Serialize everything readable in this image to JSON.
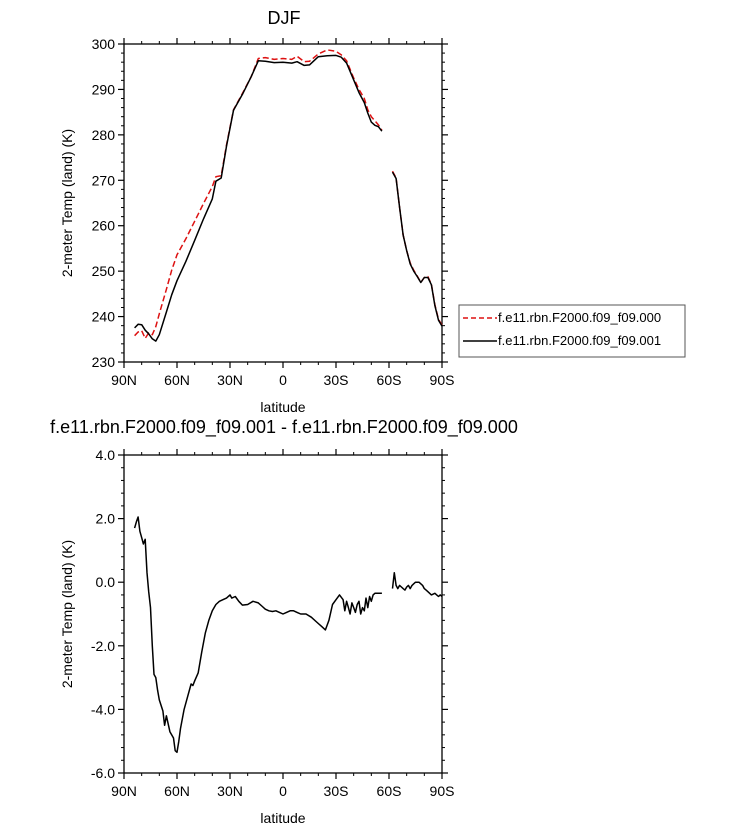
{
  "chart_data": [
    {
      "type": "line",
      "title": "DJF",
      "xlabel": "latitude",
      "ylabel": "2-meter Temp (land) (K)",
      "xlim": [
        90,
        -90
      ],
      "ylim": [
        230,
        300
      ],
      "x_tick_values": [
        90,
        60,
        30,
        0,
        -30,
        -60,
        -90
      ],
      "x_tick_labels": [
        "90N",
        "60N",
        "30N",
        "0",
        "30S",
        "60S",
        "90S"
      ],
      "y_tick_values": [
        230,
        240,
        250,
        260,
        270,
        280,
        290,
        300
      ],
      "y_tick_labels": [
        "230",
        "240",
        "250",
        "260",
        "270",
        "280",
        "290",
        "300"
      ],
      "legend_position": "right",
      "series": [
        {
          "name": "f.e11.rbn.F2000.f09_f09.000",
          "color": "#dd1111",
          "dash": "dashed",
          "segments": [
            [
              [
                84,
                235.8
              ],
              [
                82,
                236.6
              ],
              [
                80,
                236.9
              ],
              [
                78,
                235.2
              ],
              [
                76,
                236.4
              ],
              [
                74,
                236.0
              ],
              [
                72,
                237.8
              ],
              [
                70,
                240.6
              ],
              [
                66,
                246.0
              ],
              [
                63,
                250.2
              ],
              [
                60,
                253.6
              ],
              [
                55,
                257.1
              ],
              [
                50,
                261.0
              ],
              [
                45,
                264.9
              ],
              [
                40,
                268.6
              ],
              [
                38,
                270.8
              ],
              [
                35,
                271.0
              ],
              [
                32,
                277.8
              ],
              [
                28,
                285.5
              ],
              [
                23,
                289.1
              ],
              [
                18,
                292.8
              ],
              [
                14,
                296.8
              ],
              [
                10,
                297.0
              ],
              [
                5,
                296.6
              ],
              [
                0,
                296.8
              ],
              [
                -5,
                296.6
              ],
              [
                -8,
                297.3
              ],
              [
                -12,
                296.1
              ],
              [
                -15,
                296.2
              ],
              [
                -20,
                297.8
              ],
              [
                -25,
                298.7
              ],
              [
                -30,
                298.4
              ],
              [
                -33,
                297.6
              ],
              [
                -36,
                296.3
              ],
              [
                -40,
                292.5
              ],
              [
                -43,
                290.0
              ],
              [
                -46,
                288.0
              ],
              [
                -48,
                285.5
              ],
              [
                -50,
                284.0
              ],
              [
                -52,
                283.1
              ],
              [
                -54,
                282.2
              ],
              [
                -56,
                281.0
              ]
            ],
            [
              [
                -62,
                272.0
              ],
              [
                -64,
                270.5
              ],
              [
                -66,
                264.0
              ],
              [
                -68,
                258.0
              ],
              [
                -70,
                254.5
              ],
              [
                -72,
                251.8
              ],
              [
                -74,
                250.2
              ],
              [
                -76,
                248.9
              ],
              [
                -78,
                247.5
              ],
              [
                -80,
                248.6
              ],
              [
                -82,
                248.8
              ],
              [
                -84,
                247.1
              ],
              [
                -86,
                242.6
              ],
              [
                -88,
                239.4
              ],
              [
                -90,
                238.1
              ]
            ]
          ]
        },
        {
          "name": "f.e11.rbn.F2000.f09_f09.001",
          "color": "#000000",
          "dash": "solid",
          "segments": [
            [
              [
                84,
                237.5
              ],
              [
                82,
                238.3
              ],
              [
                80,
                238.2
              ],
              [
                78,
                237.0
              ],
              [
                76,
                236.2
              ],
              [
                74,
                235.1
              ],
              [
                72,
                234.6
              ],
              [
                70,
                236.0
              ],
              [
                66,
                241.0
              ],
              [
                63,
                244.8
              ],
              [
                60,
                247.9
              ],
              [
                55,
                252.1
              ],
              [
                50,
                256.8
              ],
              [
                45,
                261.5
              ],
              [
                40,
                265.9
              ],
              [
                38,
                269.8
              ],
              [
                35,
                270.5
              ],
              [
                32,
                277.5
              ],
              [
                28,
                285.4
              ],
              [
                23,
                288.9
              ],
              [
                18,
                292.8
              ],
              [
                14,
                296.3
              ],
              [
                10,
                296.2
              ],
              [
                5,
                295.9
              ],
              [
                0,
                296.0
              ],
              [
                -5,
                295.8
              ],
              [
                -8,
                296.1
              ],
              [
                -12,
                295.3
              ],
              [
                -15,
                295.4
              ],
              [
                -20,
                297.2
              ],
              [
                -25,
                297.4
              ],
              [
                -30,
                297.5
              ],
              [
                -33,
                297.1
              ],
              [
                -36,
                295.8
              ],
              [
                -40,
                292.1
              ],
              [
                -43,
                289.3
              ],
              [
                -46,
                287.1
              ],
              [
                -48,
                284.8
              ],
              [
                -50,
                282.8
              ],
              [
                -52,
                282.1
              ],
              [
                -54,
                281.8
              ],
              [
                -56,
                280.8
              ]
            ],
            [
              [
                -62,
                271.8
              ],
              [
                -64,
                270.4
              ],
              [
                -66,
                264.0
              ],
              [
                -68,
                258.0
              ],
              [
                -70,
                254.5
              ],
              [
                -72,
                251.6
              ],
              [
                -74,
                250.0
              ],
              [
                -76,
                248.8
              ],
              [
                -78,
                247.5
              ],
              [
                -80,
                248.6
              ],
              [
                -82,
                248.6
              ],
              [
                -84,
                247.0
              ],
              [
                -86,
                242.4
              ],
              [
                -88,
                239.2
              ],
              [
                -90,
                237.9
              ]
            ]
          ]
        }
      ]
    },
    {
      "type": "line",
      "title": "f.e11.rbn.F2000.f09_f09.001 - f.e11.rbn.F2000.f09_f09.000",
      "xlabel": "latitude",
      "ylabel": "2-meter Temp (land) (K)",
      "xlim": [
        90,
        -90
      ],
      "ylim": [
        -6,
        4
      ],
      "x_tick_values": [
        90,
        60,
        30,
        0,
        -30,
        -60,
        -90
      ],
      "x_tick_labels": [
        "90N",
        "60N",
        "30N",
        "0",
        "30S",
        "60S",
        "90S"
      ],
      "y_tick_values": [
        -6,
        -4,
        -2,
        0,
        2,
        4
      ],
      "y_tick_labels": [
        "-6.0",
        "-4.0",
        "-2.0",
        "0.0",
        "2.0",
        "4.0"
      ],
      "series": [
        {
          "color": "#000000",
          "dash": "solid",
          "segments": [
            [
              [
                84,
                1.7
              ],
              [
                83,
                1.9
              ],
              [
                82,
                2.05
              ],
              [
                81,
                1.6
              ],
              [
                80,
                1.4
              ],
              [
                79,
                1.2
              ],
              [
                78,
                1.35
              ],
              [
                77,
                0.3
              ],
              [
                76,
                -0.3
              ],
              [
                75,
                -0.8
              ],
              [
                74,
                -2.0
              ],
              [
                73,
                -2.9
              ],
              [
                72,
                -3.0
              ],
              [
                71,
                -3.4
              ],
              [
                70,
                -3.7
              ],
              [
                68,
                -4.05
              ],
              [
                67,
                -4.5
              ],
              [
                66,
                -4.2
              ],
              [
                64,
                -4.7
              ],
              [
                62,
                -4.9
              ],
              [
                61,
                -5.3
              ],
              [
                60,
                -5.35
              ],
              [
                59,
                -5.0
              ],
              [
                58,
                -4.6
              ],
              [
                56,
                -4.0
              ],
              [
                54,
                -3.6
              ],
              [
                52,
                -3.2
              ],
              [
                51,
                -3.25
              ],
              [
                50,
                -3.1
              ],
              [
                48,
                -2.85
              ],
              [
                46,
                -2.2
              ],
              [
                44,
                -1.6
              ],
              [
                42,
                -1.2
              ],
              [
                40,
                -0.9
              ],
              [
                38,
                -0.7
              ],
              [
                36,
                -0.6
              ],
              [
                34,
                -0.55
              ],
              [
                32,
                -0.5
              ],
              [
                30,
                -0.4
              ],
              [
                29,
                -0.5
              ],
              [
                27,
                -0.45
              ],
              [
                25,
                -0.6
              ],
              [
                23,
                -0.72
              ],
              [
                20,
                -0.7
              ],
              [
                17,
                -0.6
              ],
              [
                14,
                -0.65
              ],
              [
                12,
                -0.75
              ],
              [
                10,
                -0.85
              ],
              [
                8,
                -0.9
              ],
              [
                6,
                -0.92
              ],
              [
                4,
                -0.9
              ],
              [
                2,
                -0.95
              ],
              [
                0,
                -1.0
              ],
              [
                -2,
                -0.95
              ],
              [
                -4,
                -0.9
              ],
              [
                -6,
                -0.9
              ],
              [
                -8,
                -0.95
              ],
              [
                -10,
                -1.0
              ],
              [
                -13,
                -1.0
              ],
              [
                -16,
                -1.1
              ],
              [
                -19,
                -1.25
              ],
              [
                -22,
                -1.4
              ],
              [
                -24,
                -1.5
              ],
              [
                -26,
                -1.2
              ],
              [
                -28,
                -0.7
              ],
              [
                -30,
                -0.55
              ],
              [
                -32,
                -0.4
              ],
              [
                -34,
                -0.55
              ],
              [
                -35,
                -0.9
              ],
              [
                -36,
                -0.6
              ],
              [
                -37,
                -0.8
              ],
              [
                -38,
                -1.0
              ],
              [
                -39,
                -0.65
              ],
              [
                -40,
                -0.8
              ],
              [
                -41,
                -0.95
              ],
              [
                -42,
                -0.7
              ],
              [
                -43,
                -0.6
              ],
              [
                -44,
                -1.0
              ],
              [
                -45,
                -0.8
              ],
              [
                -46,
                -0.9
              ],
              [
                -47,
                -0.5
              ],
              [
                -48,
                -0.8
              ],
              [
                -49,
                -0.45
              ],
              [
                -50,
                -0.6
              ],
              [
                -51,
                -0.4
              ],
              [
                -52,
                -0.35
              ],
              [
                -54,
                -0.35
              ],
              [
                -56,
                -0.35
              ]
            ],
            [
              [
                -62,
                -0.2
              ],
              [
                -63,
                0.3
              ],
              [
                -64,
                -0.1
              ],
              [
                -65,
                -0.2
              ],
              [
                -66,
                -0.1
              ],
              [
                -67,
                -0.15
              ],
              [
                -68,
                -0.2
              ],
              [
                -69,
                -0.25
              ],
              [
                -70,
                -0.15
              ],
              [
                -71,
                -0.1
              ],
              [
                -72,
                -0.2
              ],
              [
                -73,
                -0.1
              ],
              [
                -74,
                -0.05
              ],
              [
                -75,
                0.0
              ],
              [
                -77,
                0.0
              ],
              [
                -79,
                -0.1
              ],
              [
                -80,
                -0.2
              ],
              [
                -81,
                -0.25
              ],
              [
                -82,
                -0.3
              ],
              [
                -84,
                -0.4
              ],
              [
                -86,
                -0.35
              ],
              [
                -87,
                -0.4
              ],
              [
                -88,
                -0.45
              ],
              [
                -89,
                -0.4
              ],
              [
                -90,
                -0.45
              ]
            ]
          ]
        }
      ]
    }
  ]
}
